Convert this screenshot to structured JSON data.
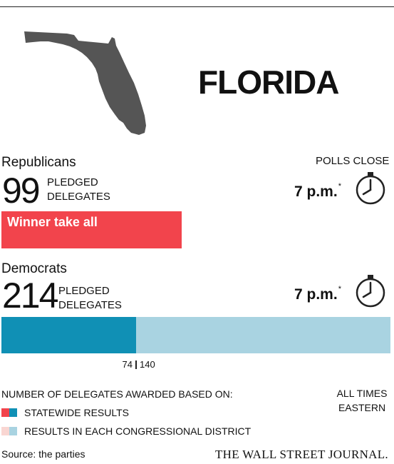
{
  "state": {
    "name": "FLORIDA",
    "map_color": "#555555"
  },
  "polls": {
    "heading": "POLLS CLOSE"
  },
  "republicans": {
    "label": "Republicans",
    "delegates": "99",
    "pledged_line1": "PLEDGED",
    "pledged_line2": "DELEGATES",
    "poll_time": "7 p.m.",
    "time_note": "*",
    "clock_icon": "clock-icon",
    "allocation": "Winner take all",
    "allocation_color": "#f2444c"
  },
  "democrats": {
    "label": "Democrats",
    "delegates": "214",
    "pledged_line1": "PLEDGED",
    "pledged_line2": "DELEGATES",
    "poll_time": "7 p.m.",
    "time_note": "*",
    "clock_icon": "clock-icon",
    "breakdown": {
      "statewide": 74,
      "district": 140,
      "statewide_label": "74",
      "district_label": "140",
      "statewide_color": "#1090b5",
      "district_color": "#a9d3e1"
    }
  },
  "legend": {
    "title": "NUMBER OF DELEGATES AWARDED BASED ON:",
    "statewide_label": "STATEWIDE RESULTS",
    "district_label": "RESULTS IN EACH CONGRESSIONAL DISTRICT",
    "statewide_colors": [
      "#f2444c",
      "#1090b5"
    ],
    "district_colors": [
      "#f9d6d2",
      "#a9d3e1"
    ]
  },
  "note": {
    "line1": "ALL TIMES",
    "line2": "EASTERN"
  },
  "footer": {
    "source": "Source: the parties",
    "brand": "THE WALL STREET JOURNAL."
  }
}
